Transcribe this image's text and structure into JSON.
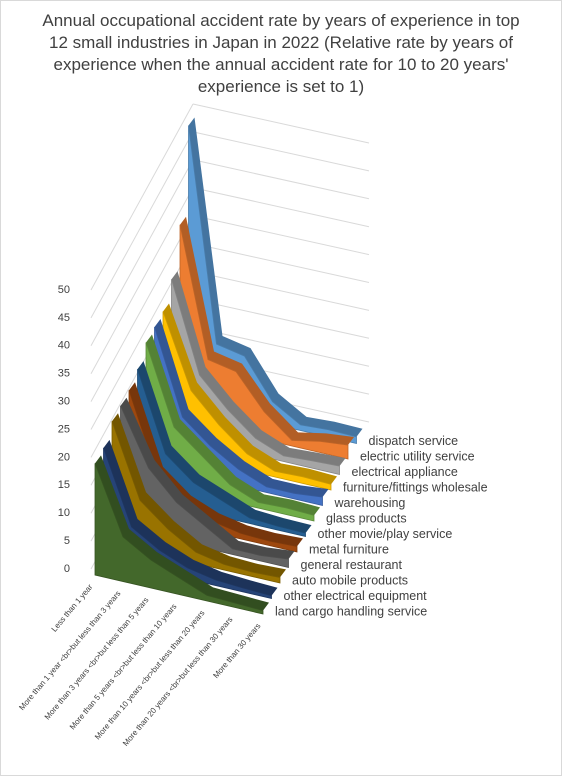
{
  "chart_data": {
    "type": "area3d",
    "title": "Annual occupational accident rate by years of experience in top 12 small industries in Japan in 2022 (Relative rate by years of experience when the annual accident rate for 10 to 20 years' experience is set to 1)",
    "categories": [
      "Less than 1 year",
      "More than 1 year <br>but less than 3 years",
      "More than 3 years <br>but less than 5 years",
      "More than 5 years <br>but less than 10 years",
      "More than 10 years <br>but less than 20 years",
      "More than 20 years <br>but less than 30 years",
      "More than 30 years"
    ],
    "ylim": [
      0,
      50
    ],
    "yticks": [
      0,
      5,
      10,
      15,
      20,
      25,
      30,
      35,
      40,
      45,
      50
    ],
    "grid": true,
    "series": [
      {
        "name": "dispatch service",
        "color": "#5b9bd5",
        "values": [
          50,
          12,
          11,
          4,
          1,
          1.3,
          1.2
        ]
      },
      {
        "name": "electric utility service",
        "color": "#ed7d31",
        "values": [
          35,
          12,
          11,
          5,
          1,
          2,
          2.5
        ]
      },
      {
        "name": "electrical appliance",
        "color": "#a5a5a5",
        "values": [
          28,
          12,
          7,
          3,
          1,
          1.3,
          1.5
        ]
      },
      {
        "name": "furniture/fittings wholesale",
        "color": "#ffc000",
        "values": [
          25,
          12,
          7,
          3,
          1,
          1.2,
          1
        ]
      },
      {
        "name": "warehousing",
        "color": "#4472c4",
        "values": [
          25,
          10,
          6,
          3,
          1,
          1,
          1.5
        ]
      },
      {
        "name": "glass products",
        "color": "#70ad47",
        "values": [
          25,
          11,
          7,
          3,
          1,
          1.2,
          1
        ]
      },
      {
        "name": "other movie/play service",
        "color": "#255e91",
        "values": [
          23,
          9,
          5,
          3,
          1,
          0.7,
          0.6
        ]
      },
      {
        "name": "metal furniture",
        "color": "#9e480e",
        "values": [
          22,
          8,
          4,
          2,
          1,
          0.8,
          1
        ]
      },
      {
        "name": "general restaurant",
        "color": "#636363",
        "values": [
          22,
          12,
          7,
          4,
          1,
          1,
          1.5
        ]
      },
      {
        "name": "auto mobile products",
        "color": "#997300",
        "values": [
          22,
          9,
          5,
          2,
          1,
          0.8,
          1
        ]
      },
      {
        "name": "other electrical equipment",
        "color": "#264478",
        "values": [
          20,
          7,
          4,
          2,
          1,
          0.7,
          0.5
        ]
      },
      {
        "name": "land cargo handling service",
        "color": "#43682b",
        "values": [
          20,
          8,
          5,
          3,
          1,
          0.8,
          0.6
        ]
      }
    ]
  }
}
